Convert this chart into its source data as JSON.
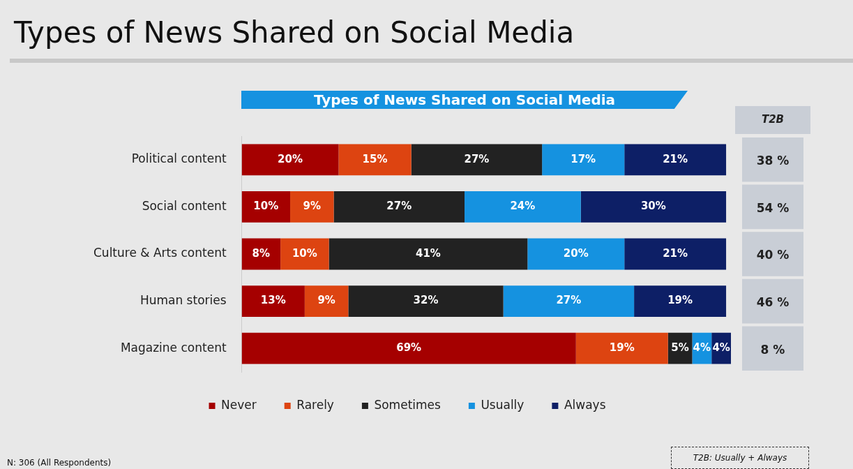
{
  "chart_data": {
    "type": "bar",
    "orientation": "horizontal",
    "stacked": true,
    "title": "Types of News Shared on Social Media",
    "subtitle": "Types of News Shared on Social Media",
    "categories": [
      "Political content",
      "Social content",
      "Culture & Arts content",
      "Human stories",
      "Magazine content"
    ],
    "series": [
      {
        "name": "Never",
        "color": "#a50000",
        "values": [
          20,
          10,
          8,
          13,
          69
        ],
        "value_labels": [
          "20%",
          "10%",
          "8%",
          "13%",
          "69%"
        ]
      },
      {
        "name": "Rarely",
        "color": "#dd4411",
        "values": [
          15,
          9,
          10,
          9,
          19
        ],
        "value_labels": [
          "15%",
          "9%",
          "10%",
          "9%",
          "19%"
        ]
      },
      {
        "name": "Sometimes",
        "color": "#222222",
        "values": [
          27,
          27,
          41,
          32,
          5
        ],
        "value_labels": [
          "27%",
          "27%",
          "41%",
          "32%",
          "5%"
        ]
      },
      {
        "name": "Usually",
        "color": "#1592e0",
        "values": [
          17,
          24,
          20,
          27,
          4
        ],
        "value_labels": [
          "17%",
          "24%",
          "20%",
          "27%",
          "4%"
        ]
      },
      {
        "name": "Always",
        "color": "#0d1f66",
        "values": [
          21,
          30,
          21,
          19,
          4
        ],
        "value_labels": [
          "21%",
          "30%",
          "21%",
          "19%",
          "4%"
        ]
      }
    ],
    "legend": "bottom",
    "tick_labels": "y",
    "annotations": [
      "T2B",
      "38 %",
      "54 %",
      "40 %",
      "46 %",
      "8 %",
      "N: 306 (All Respondents)",
      "T2B: Usually + Always"
    ]
  }
}
